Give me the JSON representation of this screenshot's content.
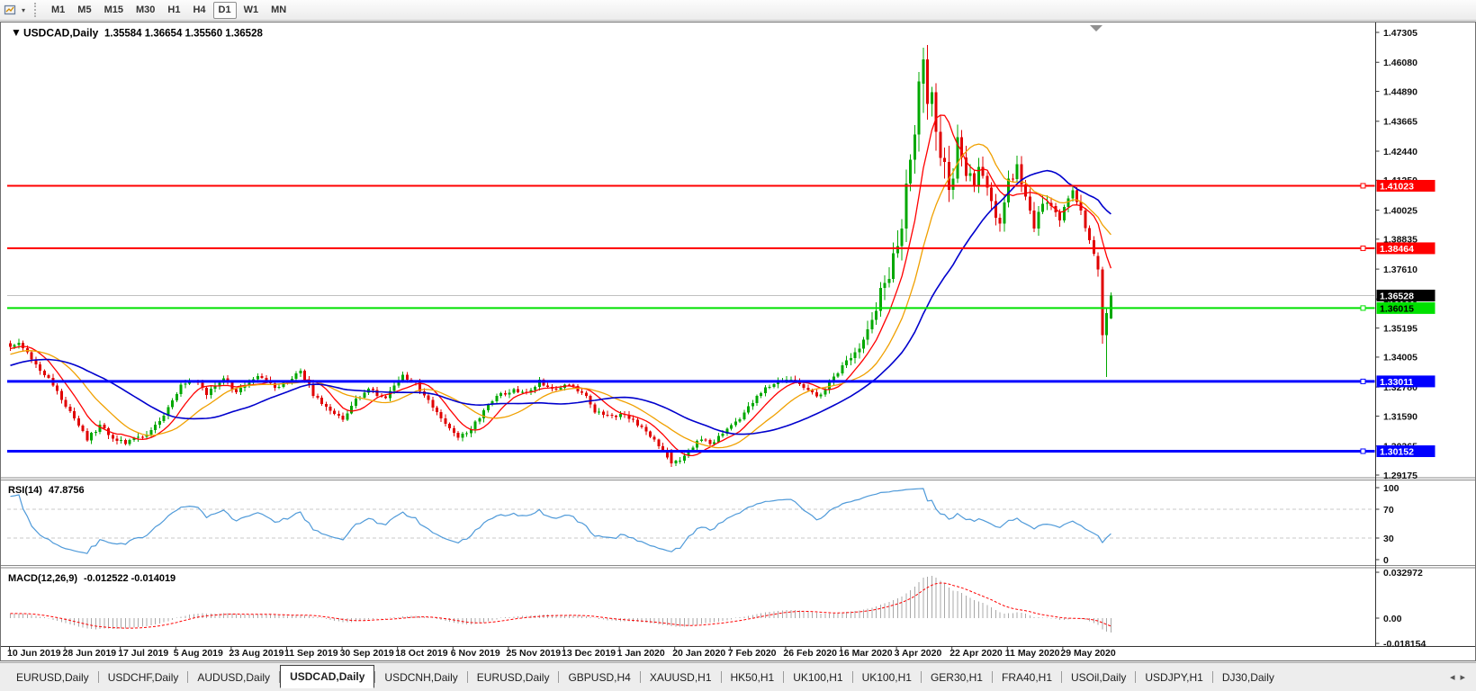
{
  "icons": {
    "toolbar_caret": "▾",
    "title_marker": "▼",
    "tab_scroll_left": "◂",
    "tab_scroll_right": "▸"
  },
  "toolbar": {
    "timeframes": [
      "M1",
      "M5",
      "M15",
      "M30",
      "H1",
      "H4",
      "D1",
      "W1",
      "MN"
    ],
    "active_timeframe": "D1"
  },
  "chart": {
    "symbol_title": "USDCAD,Daily",
    "ohlc_text": "1.35584 1.36654 1.35560 1.36528"
  },
  "price_axis": {
    "ticks": [
      "1.47305",
      "1.46080",
      "1.44890",
      "1.43665",
      "1.42440",
      "1.41250",
      "1.40025",
      "1.38835",
      "1.37610",
      "1.36385",
      "1.35195",
      "1.34005",
      "1.32780",
      "1.31590",
      "1.30365",
      "1.29175"
    ]
  },
  "levels": [
    {
      "price": 1.41023,
      "label": "1.41023",
      "color": "#ff0000",
      "width": 2,
      "text_color": "#ffffff"
    },
    {
      "price": 1.38464,
      "label": "1.38464",
      "color": "#ff0000",
      "width": 2,
      "text_color": "#ffffff"
    },
    {
      "price": 1.36015,
      "label": "1.36015",
      "color": "#00e000",
      "width": 2,
      "text_color": "#000000"
    },
    {
      "price": 1.33011,
      "label": "1.33011",
      "color": "#0000ff",
      "width": 3,
      "text_color": "#ffffff"
    },
    {
      "price": 1.30152,
      "label": "1.30152",
      "color": "#0000ff",
      "width": 3,
      "text_color": "#ffffff"
    }
  ],
  "current_price": {
    "value": 1.36528,
    "label": "1.36528",
    "line_color": "#c0c0c0",
    "tag_bg": "#000000",
    "text_color": "#ffffff"
  },
  "rsi_panel": {
    "name": "RSI(14)",
    "value": "47.8756",
    "ticks": [
      "100",
      "70",
      "30",
      "0"
    ],
    "level_lines": [
      70,
      30
    ],
    "line_color": "#4f9ad9"
  },
  "macd_panel": {
    "name": "MACD(12,26,9)",
    "values": "-0.012522 -0.014019",
    "ticks": [
      "0.032972",
      "0.00",
      "-0.018154"
    ],
    "histogram_color": "#a8a8a8",
    "signal_color": "#ff0000"
  },
  "date_axis": {
    "labels": [
      "10 Jun 2019",
      "28 Jun 2019",
      "17 Jul 2019",
      "5 Aug 2019",
      "23 Aug 2019",
      "11 Sep 2019",
      "30 Sep 2019",
      "18 Oct 2019",
      "6 Nov 2019",
      "25 Nov 2019",
      "13 Dec 2019",
      "1 Jan 2020",
      "20 Jan 2020",
      "7 Feb 2020",
      "26 Feb 2020",
      "16 Mar 2020",
      "3 Apr 2020",
      "22 Apr 2020",
      "11 May 2020",
      "29 May 2020"
    ]
  },
  "tabs": {
    "items": [
      "EURUSD,Daily",
      "USDCHF,Daily",
      "AUDUSD,Daily",
      "USDCAD,Daily",
      "USDCNH,Daily",
      "EURUSD,Daily",
      "GBPUSD,H4",
      "XAUUSD,H1",
      "HK50,H1",
      "UK100,H1",
      "UK100,H1",
      "GER30,H1",
      "FRA40,H1",
      "USOil,Daily",
      "USDJPY,H1",
      "DJ30,Daily"
    ],
    "active_index": 3
  },
  "chart_data": {
    "type": "candlestick",
    "symbol": "USDCAD",
    "timeframe": "Daily",
    "bar_count": 259,
    "visible_price_range": {
      "top": 1.47305,
      "bottom": 1.29175
    },
    "last_candle": {
      "open": 1.35584,
      "high": 1.36654,
      "low": 1.3556,
      "close": 1.36528
    },
    "up_color": "#00a800",
    "down_color": "#e00000",
    "close_anchors": [
      [
        0,
        1.345
      ],
      [
        2,
        1.346
      ],
      [
        4,
        1.3425
      ],
      [
        7,
        1.334
      ],
      [
        9,
        1.331
      ],
      [
        11,
        1.326
      ],
      [
        14,
        1.318
      ],
      [
        16,
        1.312
      ],
      [
        18,
        1.3065
      ],
      [
        21,
        1.312
      ],
      [
        24,
        1.307
      ],
      [
        27,
        1.3045
      ],
      [
        30,
        1.307
      ],
      [
        32,
        1.309
      ],
      [
        36,
        1.316
      ],
      [
        40,
        1.328
      ],
      [
        43,
        1.3305
      ],
      [
        46,
        1.325
      ],
      [
        50,
        1.331
      ],
      [
        53,
        1.326
      ],
      [
        56,
        1.33
      ],
      [
        59,
        1.332
      ],
      [
        62,
        1.327
      ],
      [
        65,
        1.33
      ],
      [
        68,
        1.335
      ],
      [
        71,
        1.325
      ],
      [
        74,
        1.319
      ],
      [
        78,
        1.315
      ],
      [
        81,
        1.323
      ],
      [
        84,
        1.327
      ],
      [
        88,
        1.323
      ],
      [
        92,
        1.333
      ],
      [
        95,
        1.329
      ],
      [
        99,
        1.32
      ],
      [
        102,
        1.313
      ],
      [
        105,
        1.307
      ],
      [
        108,
        1.311
      ],
      [
        111,
        1.318
      ],
      [
        114,
        1.324
      ],
      [
        118,
        1.327
      ],
      [
        121,
        1.325
      ],
      [
        124,
        1.33
      ],
      [
        128,
        1.327
      ],
      [
        131,
        1.329
      ],
      [
        135,
        1.324
      ],
      [
        137,
        1.318
      ],
      [
        141,
        1.316
      ],
      [
        144,
        1.317
      ],
      [
        148,
        1.311
      ],
      [
        151,
        1.306
      ],
      [
        155,
        1.2965
      ],
      [
        158,
        1.299
      ],
      [
        161,
        1.306
      ],
      [
        165,
        1.305
      ],
      [
        168,
        1.311
      ],
      [
        171,
        1.315
      ],
      [
        174,
        1.322
      ],
      [
        177,
        1.327
      ],
      [
        180,
        1.33
      ],
      [
        184,
        1.331
      ],
      [
        186,
        1.328
      ],
      [
        189,
        1.324
      ],
      [
        192,
        1.329
      ],
      [
        194,
        1.334
      ],
      [
        197,
        1.34
      ],
      [
        200,
        1.347
      ],
      [
        202,
        1.356
      ],
      [
        204,
        1.366
      ],
      [
        206,
        1.374
      ],
      [
        208,
        1.387
      ],
      [
        209,
        1.396
      ],
      [
        210,
        1.41
      ],
      [
        212,
        1.43
      ],
      [
        213,
        1.452
      ],
      [
        214,
        1.462
      ],
      [
        215,
        1.445
      ],
      [
        216,
        1.448
      ],
      [
        217,
        1.431
      ],
      [
        219,
        1.418
      ],
      [
        220,
        1.409
      ],
      [
        221,
        1.416
      ],
      [
        222,
        1.428
      ],
      [
        224,
        1.417
      ],
      [
        226,
        1.408
      ],
      [
        227,
        1.416
      ],
      [
        229,
        1.409
      ],
      [
        230,
        1.402
      ],
      [
        232,
        1.396
      ],
      [
        233,
        1.404
      ],
      [
        234,
        1.411
      ],
      [
        236,
        1.419
      ],
      [
        237,
        1.409
      ],
      [
        239,
        1.401
      ],
      [
        240,
        1.393
      ],
      [
        242,
        1.404
      ],
      [
        244,
        1.401
      ],
      [
        246,
        1.395
      ],
      [
        247,
        1.403
      ],
      [
        249,
        1.407
      ],
      [
        251,
        1.399
      ],
      [
        253,
        1.389
      ],
      [
        255,
        1.376
      ],
      [
        256,
        1.349
      ],
      [
        257,
        1.358
      ],
      [
        258,
        1.36528
      ]
    ],
    "volatility_anchors": [
      [
        0,
        1.0
      ],
      [
        100,
        1.0
      ],
      [
        150,
        0.9
      ],
      [
        195,
        1.0
      ],
      [
        200,
        1.8
      ],
      [
        205,
        3.0
      ],
      [
        210,
        4.5
      ],
      [
        216,
        5.0
      ],
      [
        222,
        3.5
      ],
      [
        230,
        2.5
      ],
      [
        240,
        2.2
      ],
      [
        250,
        1.8
      ],
      [
        258,
        1.5
      ]
    ],
    "forced_candles": {
      "155": {
        "open": 1.301,
        "high": 1.3025,
        "low": 1.295,
        "close": 1.2965
      },
      "214": {
        "open": 1.452,
        "high": 1.4668,
        "low": 1.44,
        "close": 1.462
      },
      "255": {
        "open": 1.3815,
        "high": 1.383,
        "low": 1.373,
        "close": 1.376
      },
      "256": {
        "open": 1.376,
        "high": 1.377,
        "low": 1.3455,
        "close": 1.349
      },
      "257": {
        "open": 1.349,
        "high": 1.3605,
        "low": 1.332,
        "close": 1.358
      },
      "258": {
        "open": 1.35584,
        "high": 1.36654,
        "low": 1.3556,
        "close": 1.36528
      }
    },
    "moving_averages": [
      {
        "period": 8,
        "color": "#ff0000"
      },
      {
        "period": 17,
        "color": "#f0a000"
      },
      {
        "period": 34,
        "color": "#0000cd"
      }
    ],
    "indicators": {
      "rsi": {
        "period": 14,
        "current": 47.8756
      },
      "macd": {
        "fast": 12,
        "slow": 26,
        "signal": 9,
        "current_main": -0.012522,
        "current_signal": -0.014019
      }
    }
  }
}
